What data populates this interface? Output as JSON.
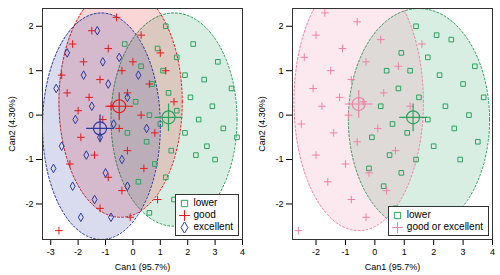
{
  "chart_data": [
    {
      "type": "scatter",
      "xlabel": "Can1 (95.7%)",
      "ylabel": "Can2 (4.30%)",
      "xlim": [
        -3.3,
        4.0
      ],
      "ylim": [
        -2.8,
        2.4
      ],
      "xticks": [
        -3,
        -2,
        -1,
        0,
        1,
        2,
        3,
        4
      ],
      "yticks": [
        -2,
        -1,
        0,
        1,
        2
      ],
      "legend": "bottom-right",
      "series": [
        {
          "name": "lower",
          "color": "#2ca25f",
          "marker": "square",
          "centroid": [
            1.3,
            -0.05
          ],
          "ellipse": {
            "cx": 1.5,
            "cy": -0.1,
            "rx": 2.3,
            "ry": 2.4
          },
          "values": [
            [
              1.2,
              2.0
            ],
            [
              2.2,
              1.6
            ],
            [
              0.9,
              1.5
            ],
            [
              1.6,
              1.3
            ],
            [
              3.1,
              1.2
            ],
            [
              0.3,
              1.1
            ],
            [
              1.9,
              0.9
            ],
            [
              2.6,
              0.8
            ],
            [
              0.7,
              0.7
            ],
            [
              3.6,
              0.6
            ],
            [
              1.3,
              0.5
            ],
            [
              2.1,
              0.4
            ],
            [
              0.1,
              0.3
            ],
            [
              2.9,
              0.2
            ],
            [
              1.6,
              0.1
            ],
            [
              0.6,
              0.0
            ],
            [
              2.4,
              -0.1
            ],
            [
              1.0,
              -0.2
            ],
            [
              3.3,
              -0.3
            ],
            [
              1.9,
              -0.4
            ],
            [
              -0.2,
              -0.4
            ],
            [
              0.5,
              -0.6
            ],
            [
              2.7,
              -0.7
            ],
            [
              1.4,
              -0.8
            ],
            [
              3.0,
              -1.0
            ],
            [
              0.8,
              -1.1
            ],
            [
              1.2,
              -1.4
            ],
            [
              0.2,
              -1.5
            ],
            [
              1.5,
              -1.9
            ],
            [
              0.6,
              -2.2
            ],
            [
              2.3,
              -0.9
            ],
            [
              1.1,
              1.0
            ],
            [
              -0.3,
              1.6
            ],
            [
              3.8,
              -0.5
            ]
          ]
        },
        {
          "name": "good",
          "color": "#e41a1c",
          "marker": "plus",
          "centroid": [
            -0.5,
            0.2
          ],
          "ellipse": {
            "cx": -0.45,
            "cy": 0.3,
            "rx": 2.25,
            "ry": 2.6
          },
          "values": [
            [
              -0.6,
              2.2
            ],
            [
              -1.5,
              1.9
            ],
            [
              0.3,
              1.8
            ],
            [
              -2.2,
              1.6
            ],
            [
              -0.9,
              1.5
            ],
            [
              1.0,
              1.4
            ],
            [
              -1.8,
              1.2
            ],
            [
              0.0,
              1.2
            ],
            [
              -0.4,
              1.0
            ],
            [
              -2.6,
              0.9
            ],
            [
              -1.2,
              0.8
            ],
            [
              0.6,
              0.7
            ],
            [
              -0.2,
              0.5
            ],
            [
              -1.6,
              0.4
            ],
            [
              1.5,
              0.3
            ],
            [
              -0.8,
              0.2
            ],
            [
              -2.0,
              0.1
            ],
            [
              0.3,
              0.0
            ],
            [
              -1.1,
              -0.1
            ],
            [
              -0.5,
              -0.3
            ],
            [
              -1.9,
              -0.5
            ],
            [
              0.8,
              -0.4
            ],
            [
              -0.2,
              -0.8
            ],
            [
              -1.4,
              -0.9
            ],
            [
              0.4,
              -1.2
            ],
            [
              -0.9,
              -1.4
            ],
            [
              -2.3,
              -1.1
            ],
            [
              -0.4,
              -1.7
            ],
            [
              0.9,
              -1.9
            ],
            [
              -1.2,
              -2.1
            ],
            [
              -2.7,
              -2.6
            ],
            [
              -0.1,
              -2.3
            ],
            [
              1.2,
              1.0
            ],
            [
              -2.4,
              0.5
            ]
          ]
        },
        {
          "name": "excellent",
          "color": "#2b3a9e",
          "marker": "diamond",
          "centroid": [
            -1.2,
            -0.3
          ],
          "ellipse": {
            "cx": -1.15,
            "cy": -0.25,
            "rx": 2.15,
            "ry": 2.55
          },
          "values": [
            [
              -1.3,
              1.9
            ],
            [
              -2.4,
              1.4
            ],
            [
              -0.5,
              1.3
            ],
            [
              -1.8,
              0.9
            ],
            [
              -0.9,
              0.7
            ],
            [
              -2.8,
              0.6
            ],
            [
              -0.2,
              0.4
            ],
            [
              -1.5,
              0.2
            ],
            [
              -2.1,
              -0.1
            ],
            [
              -0.7,
              -0.2
            ],
            [
              -1.2,
              -0.5
            ],
            [
              0.5,
              -0.3
            ],
            [
              -2.6,
              -0.7
            ],
            [
              -1.7,
              -0.9
            ],
            [
              -0.4,
              -1.0
            ],
            [
              -1.0,
              -1.3
            ],
            [
              -2.2,
              -1.6
            ],
            [
              -0.2,
              -1.6
            ],
            [
              -1.4,
              -1.9
            ],
            [
              -0.8,
              -2.3
            ],
            [
              -2.9,
              -1.2
            ],
            [
              0.2,
              0.9
            ],
            [
              -1.1,
              1.2
            ],
            [
              -1.9,
              -2.3
            ]
          ]
        }
      ]
    },
    {
      "type": "scatter",
      "xlabel": "Can1 (95.7%)",
      "ylabel": "Can2 (4.30%)",
      "xlim": [
        -2.8,
        4.0
      ],
      "ylim": [
        -2.8,
        2.4
      ],
      "xticks": [
        -2,
        -1,
        0,
        1,
        2,
        3,
        4
      ],
      "yticks": [
        -2,
        -1,
        0,
        1,
        2
      ],
      "legend": "bottom-right",
      "series": [
        {
          "name": "lower",
          "color": "#2ca25f",
          "marker": "square",
          "centroid": [
            1.3,
            -0.05
          ],
          "ellipse": {
            "cx": 1.5,
            "cy": -0.1,
            "rx": 2.4,
            "ry": 2.5
          },
          "values": [
            [
              1.4,
              2.0
            ],
            [
              2.6,
              1.7
            ],
            [
              0.9,
              1.4
            ],
            [
              1.8,
              1.3
            ],
            [
              3.4,
              1.1
            ],
            [
              0.4,
              1.0
            ],
            [
              2.2,
              0.9
            ],
            [
              3.0,
              0.7
            ],
            [
              0.8,
              0.6
            ],
            [
              3.7,
              0.4
            ],
            [
              1.5,
              0.4
            ],
            [
              2.4,
              0.2
            ],
            [
              0.2,
              0.2
            ],
            [
              3.2,
              0.0
            ],
            [
              1.8,
              -0.1
            ],
            [
              0.6,
              -0.2
            ],
            [
              2.7,
              -0.3
            ],
            [
              1.1,
              -0.4
            ],
            [
              3.5,
              -0.6
            ],
            [
              2.0,
              -0.7
            ],
            [
              -0.1,
              -0.5
            ],
            [
              0.5,
              -0.9
            ],
            [
              2.9,
              -1.0
            ],
            [
              1.4,
              -1.0
            ],
            [
              0.9,
              -1.3
            ],
            [
              0.3,
              -1.6
            ],
            [
              0.7,
              -2.1
            ],
            [
              -0.2,
              -1.2
            ],
            [
              1.2,
              1.0
            ],
            [
              2.1,
              1.8
            ]
          ]
        },
        {
          "name": "good or excellent",
          "color": "#ee82a8",
          "marker": "plus",
          "centroid": [
            -0.55,
            0.25
          ],
          "ellipse": {
            "cx": -0.55,
            "cy": 0.3,
            "rx": 2.2,
            "ry": 2.9
          },
          "values": [
            [
              -1.7,
              2.3
            ],
            [
              -0.6,
              2.1
            ],
            [
              -2.0,
              1.8
            ],
            [
              0.2,
              1.7
            ],
            [
              -1.1,
              1.5
            ],
            [
              -2.4,
              1.3
            ],
            [
              -0.3,
              1.2
            ],
            [
              0.8,
              1.1
            ],
            [
              -1.5,
              1.0
            ],
            [
              -0.8,
              0.8
            ],
            [
              -2.1,
              0.6
            ],
            [
              0.3,
              0.5
            ],
            [
              -1.2,
              0.4
            ],
            [
              -0.4,
              0.3
            ],
            [
              -1.8,
              0.2
            ],
            [
              1.2,
              0.2
            ],
            [
              -0.9,
              0.0
            ],
            [
              -2.5,
              -0.2
            ],
            [
              0.1,
              -0.3
            ],
            [
              -1.4,
              -0.4
            ],
            [
              -0.6,
              -0.6
            ],
            [
              0.7,
              -0.8
            ],
            [
              -2.0,
              -0.9
            ],
            [
              -1.0,
              -1.1
            ],
            [
              -0.2,
              -1.3
            ],
            [
              -1.6,
              -1.5
            ],
            [
              0.4,
              -1.7
            ],
            [
              -0.8,
              -1.9
            ],
            [
              -2.6,
              -2.6
            ],
            [
              1.6,
              1.6
            ],
            [
              -0.3,
              -2.3
            ]
          ]
        }
      ]
    }
  ]
}
